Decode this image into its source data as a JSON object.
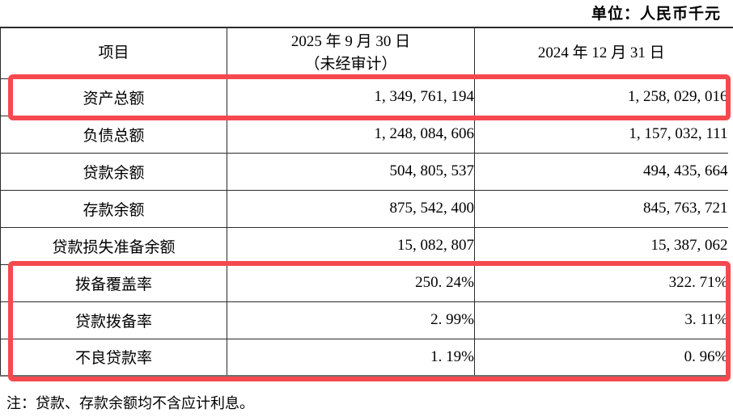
{
  "unit_label": "单位：人民币千元",
  "table": {
    "header": {
      "item": "项目",
      "col_2025_line1": "2025 年 9 月 30 日",
      "col_2025_line2": "（未经审计）",
      "col_2024": "2024 年 12 月 31 日"
    },
    "rows": [
      {
        "label": "资产总额",
        "v2025": "1, 349, 761, 194",
        "v2024": "1, 258, 029, 016",
        "highlighted": true
      },
      {
        "label": "负债总额",
        "v2025": "1, 248, 084, 606",
        "v2024": "1, 157, 032, 111",
        "highlighted": false
      },
      {
        "label": "贷款余额",
        "v2025": "504, 805, 537",
        "v2024": "494, 435, 664",
        "highlighted": false
      },
      {
        "label": "存款余额",
        "v2025": "875, 542, 400",
        "v2024": "845, 763, 721",
        "highlighted": false
      },
      {
        "label": "贷款损失准备余额",
        "v2025": "15, 082, 807",
        "v2024": "15, 387, 062",
        "highlighted": false
      },
      {
        "label": "拨备覆盖率",
        "v2025": "250. 24%",
        "v2024": "322. 71%",
        "highlighted": true
      },
      {
        "label": "贷款拨备率",
        "v2025": "2. 99%",
        "v2024": "3. 11%",
        "highlighted": true
      },
      {
        "label": "不良贷款率",
        "v2025": "1. 19%",
        "v2024": "0. 96%",
        "highlighted": true
      }
    ]
  },
  "note": "注：贷款、存款余额均不含应计利息。",
  "colors": {
    "highlight_box": "#f5494f",
    "table_border": "#2b2b2b",
    "text": "#000000",
    "background": "#ffffff"
  }
}
